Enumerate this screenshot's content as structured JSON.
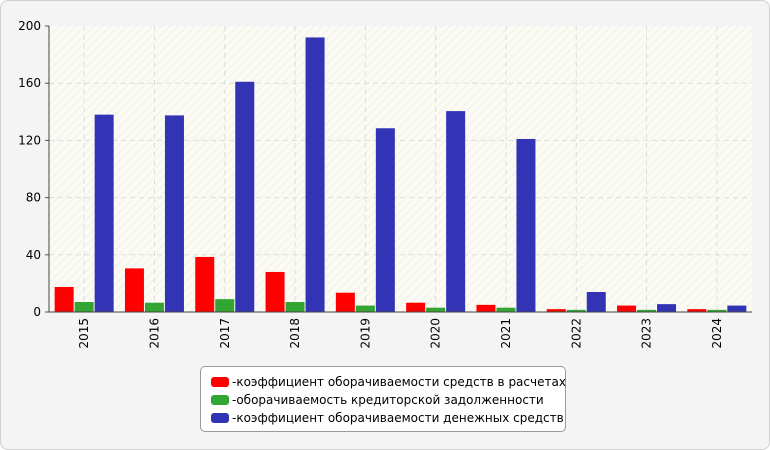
{
  "chart_data": {
    "type": "bar",
    "categories": [
      "2015",
      "2016",
      "2017",
      "2018",
      "2019",
      "2020",
      "2021",
      "2022",
      "2023",
      "2024"
    ],
    "series": [
      {
        "name": "коэффициент оборачиваемости средств в расчетах",
        "color": "#ff0000",
        "values": [
          17.5,
          30.5,
          38.5,
          28,
          13.5,
          6.5,
          5,
          2,
          4.5,
          2
        ]
      },
      {
        "name": "оборачиваемость кредиторской задолженности",
        "color": "#33a532",
        "values": [
          7,
          6.5,
          9,
          7,
          4.5,
          3,
          3,
          1.5,
          1.5,
          1.5
        ]
      },
      {
        "name": "коэффициент оборачиваемости денежных средств",
        "color": "#3333b5",
        "values": [
          138,
          137.5,
          161,
          192,
          128.5,
          140.5,
          121,
          14,
          5.5,
          4.5
        ]
      }
    ],
    "yticks": [
      "0",
      "40",
      "80",
      "120",
      "160",
      "200"
    ],
    "ylim": [
      0,
      200
    ],
    "grid": true,
    "legend_position": "bottom",
    "legend_prefix": "- "
  }
}
